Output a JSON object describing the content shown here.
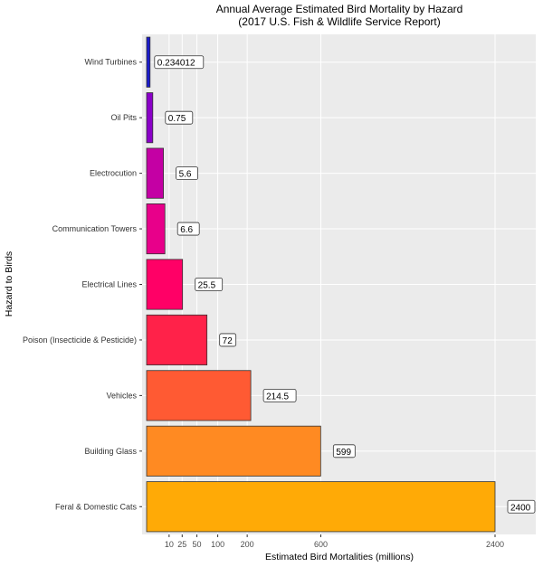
{
  "chart_data": {
    "type": "bar",
    "orientation": "horizontal",
    "title": "Annual Average Estimated Bird Mortality by Hazard",
    "subtitle": "(2017 U.S. Fish & Wildlife Service Report)",
    "xlabel": "Estimated Bird Mortalities (millions)",
    "ylabel": "Hazard to Birds",
    "x_scale": "sqrt",
    "xlim": [
      0,
      2400
    ],
    "x_ticks": [
      10,
      25,
      50,
      100,
      200,
      600,
      2400
    ],
    "grid": true,
    "categories": [
      "Wind Turbines",
      "Oil Pits",
      "Electrocution",
      "Communication Towers",
      "Electrical Lines",
      "Poison (Insecticide & Pesticide)",
      "Vehicles",
      "Building Glass",
      "Feral & Domestic Cats"
    ],
    "values": [
      0.234012,
      0.75,
      5.6,
      6.6,
      25.5,
      72,
      214.5,
      599,
      2400
    ],
    "data_labels": [
      "0.234012",
      "0.75",
      "5.6",
      "6.6",
      "25.5",
      "72",
      "214.5",
      "599",
      "2400"
    ],
    "colors": [
      "#1a1acc",
      "#8a00c8",
      "#c400a4",
      "#e8008a",
      "#ff0066",
      "#ff2249",
      "#ff5a33",
      "#ff8a22",
      "#ffaa06"
    ]
  }
}
